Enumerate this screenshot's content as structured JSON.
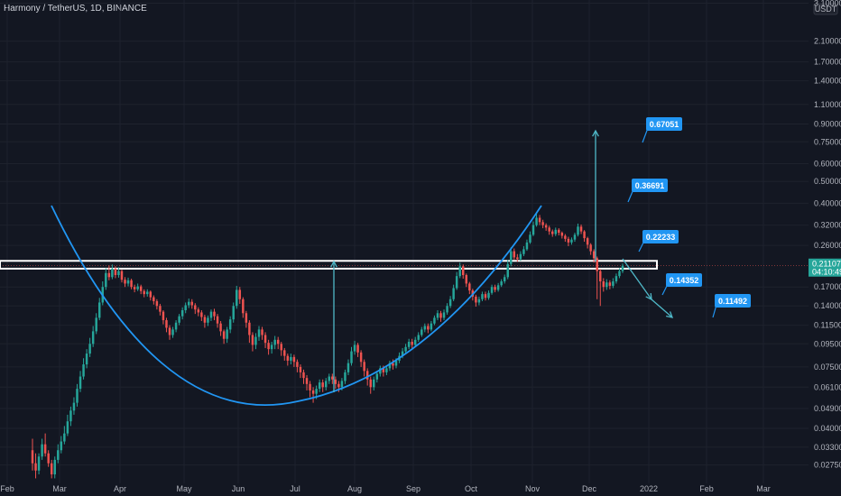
{
  "header": {
    "title": "Harmony / TetherUS, 1D, BINANCE"
  },
  "chart_data": {
    "type": "candlestick",
    "scale": "log",
    "currency": "USDT",
    "ylim": [
      0.0228,
      3.2
    ],
    "price_ticks": [
      "3.10000",
      "2.10000",
      "1.70000",
      "1.40000",
      "1.10000",
      "0.90000",
      "0.75000",
      "0.60000",
      "0.50000",
      "0.40000",
      "0.32000",
      "0.26000",
      "0.17000",
      "0.14000",
      "0.11500",
      "0.09500",
      "0.07500",
      "0.06100",
      "0.04900",
      "0.04000",
      "0.03300",
      "0.02750"
    ],
    "time_labels": [
      "Feb",
      "Mar",
      "Apr",
      "May",
      "Jun",
      "Jul",
      "Aug",
      "Sep",
      "Oct",
      "Nov",
      "Dec",
      "2022",
      "Feb",
      "Mar"
    ],
    "current_price": "0.21107",
    "countdown": "04:10:49",
    "resistance_zone": [
      0.205,
      0.222
    ],
    "targets_up": [
      "0.22233",
      "0.36691",
      "0.67051"
    ],
    "targets_down": [
      "0.14352",
      "0.11492"
    ],
    "candles": [
      [
        0.032,
        0.028,
        0.036,
        0.026
      ],
      [
        0.028,
        0.026,
        0.031,
        0.024
      ],
      [
        0.026,
        0.03,
        0.031,
        0.025
      ],
      [
        0.03,
        0.034,
        0.036,
        0.029
      ],
      [
        0.034,
        0.031,
        0.038,
        0.03
      ],
      [
        0.031,
        0.028,
        0.032,
        0.027
      ],
      [
        0.028,
        0.025,
        0.029,
        0.024
      ],
      [
        0.025,
        0.029,
        0.03,
        0.024
      ],
      [
        0.029,
        0.032,
        0.034,
        0.028
      ],
      [
        0.032,
        0.035,
        0.037,
        0.031
      ],
      [
        0.035,
        0.038,
        0.041,
        0.034
      ],
      [
        0.038,
        0.043,
        0.046,
        0.037
      ],
      [
        0.043,
        0.048,
        0.05,
        0.041
      ],
      [
        0.048,
        0.052,
        0.055,
        0.046
      ],
      [
        0.052,
        0.06,
        0.063,
        0.05
      ],
      [
        0.06,
        0.068,
        0.072,
        0.058
      ],
      [
        0.068,
        0.077,
        0.082,
        0.066
      ],
      [
        0.077,
        0.086,
        0.09,
        0.074
      ],
      [
        0.086,
        0.095,
        0.101,
        0.083
      ],
      [
        0.095,
        0.108,
        0.114,
        0.092
      ],
      [
        0.108,
        0.124,
        0.13,
        0.105
      ],
      [
        0.124,
        0.145,
        0.152,
        0.121
      ],
      [
        0.145,
        0.17,
        0.18,
        0.141
      ],
      [
        0.17,
        0.196,
        0.206,
        0.165
      ],
      [
        0.196,
        0.188,
        0.212,
        0.182
      ],
      [
        0.188,
        0.205,
        0.214,
        0.184
      ],
      [
        0.205,
        0.192,
        0.21,
        0.186
      ],
      [
        0.192,
        0.2,
        0.208,
        0.187
      ],
      [
        0.2,
        0.183,
        0.203,
        0.178
      ],
      [
        0.183,
        0.176,
        0.188,
        0.17
      ],
      [
        0.176,
        0.182,
        0.187,
        0.171
      ],
      [
        0.182,
        0.17,
        0.185,
        0.166
      ],
      [
        0.17,
        0.166,
        0.174,
        0.161
      ],
      [
        0.166,
        0.171,
        0.176,
        0.163
      ],
      [
        0.171,
        0.163,
        0.174,
        0.158
      ],
      [
        0.163,
        0.158,
        0.166,
        0.153
      ],
      [
        0.158,
        0.162,
        0.166,
        0.154
      ],
      [
        0.162,
        0.153,
        0.164,
        0.148
      ],
      [
        0.153,
        0.147,
        0.156,
        0.142
      ],
      [
        0.147,
        0.14,
        0.15,
        0.135
      ],
      [
        0.14,
        0.132,
        0.143,
        0.127
      ],
      [
        0.132,
        0.121,
        0.134,
        0.116
      ],
      [
        0.121,
        0.112,
        0.124,
        0.107
      ],
      [
        0.112,
        0.104,
        0.115,
        0.099
      ],
      [
        0.104,
        0.11,
        0.113,
        0.101
      ],
      [
        0.11,
        0.118,
        0.121,
        0.107
      ],
      [
        0.118,
        0.126,
        0.129,
        0.115
      ],
      [
        0.126,
        0.134,
        0.138,
        0.122
      ],
      [
        0.134,
        0.141,
        0.145,
        0.13
      ],
      [
        0.141,
        0.146,
        0.151,
        0.137
      ],
      [
        0.146,
        0.141,
        0.15,
        0.136
      ],
      [
        0.141,
        0.135,
        0.144,
        0.129
      ],
      [
        0.135,
        0.131,
        0.138,
        0.126
      ],
      [
        0.131,
        0.125,
        0.134,
        0.12
      ],
      [
        0.125,
        0.118,
        0.128,
        0.112
      ],
      [
        0.118,
        0.124,
        0.127,
        0.114
      ],
      [
        0.124,
        0.132,
        0.135,
        0.12
      ],
      [
        0.132,
        0.126,
        0.136,
        0.121
      ],
      [
        0.126,
        0.117,
        0.129,
        0.112
      ],
      [
        0.117,
        0.108,
        0.12,
        0.103
      ],
      [
        0.108,
        0.1,
        0.11,
        0.095
      ],
      [
        0.1,
        0.11,
        0.113,
        0.096
      ],
      [
        0.11,
        0.122,
        0.126,
        0.106
      ],
      [
        0.122,
        0.14,
        0.145,
        0.118
      ],
      [
        0.14,
        0.165,
        0.172,
        0.136
      ],
      [
        0.165,
        0.15,
        0.17,
        0.143
      ],
      [
        0.15,
        0.13,
        0.153,
        0.124
      ],
      [
        0.13,
        0.118,
        0.133,
        0.112
      ],
      [
        0.118,
        0.104,
        0.121,
        0.096
      ],
      [
        0.104,
        0.094,
        0.107,
        0.088
      ],
      [
        0.094,
        0.102,
        0.106,
        0.09
      ],
      [
        0.102,
        0.11,
        0.114,
        0.098
      ],
      [
        0.11,
        0.104,
        0.113,
        0.099
      ],
      [
        0.104,
        0.096,
        0.107,
        0.091
      ],
      [
        0.096,
        0.09,
        0.099,
        0.085
      ],
      [
        0.09,
        0.094,
        0.097,
        0.086
      ],
      [
        0.094,
        0.099,
        0.103,
        0.09
      ],
      [
        0.099,
        0.095,
        0.102,
        0.09
      ],
      [
        0.095,
        0.089,
        0.097,
        0.084
      ],
      [
        0.089,
        0.084,
        0.091,
        0.08
      ],
      [
        0.084,
        0.08,
        0.086,
        0.076
      ],
      [
        0.08,
        0.083,
        0.086,
        0.077
      ],
      [
        0.083,
        0.079,
        0.085,
        0.075
      ],
      [
        0.079,
        0.075,
        0.081,
        0.071
      ],
      [
        0.075,
        0.071,
        0.077,
        0.067
      ],
      [
        0.071,
        0.067,
        0.073,
        0.063
      ],
      [
        0.067,
        0.063,
        0.069,
        0.059
      ],
      [
        0.063,
        0.059,
        0.065,
        0.055
      ],
      [
        0.059,
        0.057,
        0.061,
        0.052
      ],
      [
        0.057,
        0.06,
        0.062,
        0.054
      ],
      [
        0.06,
        0.064,
        0.066,
        0.058
      ],
      [
        0.064,
        0.061,
        0.066,
        0.058
      ],
      [
        0.061,
        0.065,
        0.067,
        0.059
      ],
      [
        0.065,
        0.068,
        0.07,
        0.063
      ],
      [
        0.068,
        0.066,
        0.07,
        0.063
      ],
      [
        0.066,
        0.063,
        0.068,
        0.06
      ],
      [
        0.063,
        0.061,
        0.065,
        0.058
      ],
      [
        0.061,
        0.065,
        0.067,
        0.059
      ],
      [
        0.065,
        0.071,
        0.073,
        0.063
      ],
      [
        0.071,
        0.078,
        0.081,
        0.069
      ],
      [
        0.078,
        0.088,
        0.092,
        0.076
      ],
      [
        0.088,
        0.094,
        0.098,
        0.085
      ],
      [
        0.094,
        0.087,
        0.096,
        0.083
      ],
      [
        0.087,
        0.079,
        0.089,
        0.075
      ],
      [
        0.079,
        0.072,
        0.081,
        0.068
      ],
      [
        0.072,
        0.066,
        0.074,
        0.062
      ],
      [
        0.066,
        0.061,
        0.068,
        0.057
      ],
      [
        0.061,
        0.066,
        0.068,
        0.059
      ],
      [
        0.066,
        0.07,
        0.072,
        0.064
      ],
      [
        0.07,
        0.074,
        0.076,
        0.068
      ],
      [
        0.074,
        0.071,
        0.076,
        0.068
      ],
      [
        0.071,
        0.074,
        0.076,
        0.069
      ],
      [
        0.074,
        0.078,
        0.08,
        0.072
      ],
      [
        0.078,
        0.076,
        0.081,
        0.073
      ],
      [
        0.076,
        0.08,
        0.082,
        0.074
      ],
      [
        0.08,
        0.084,
        0.087,
        0.078
      ],
      [
        0.084,
        0.088,
        0.091,
        0.082
      ],
      [
        0.088,
        0.092,
        0.095,
        0.086
      ],
      [
        0.092,
        0.097,
        0.1,
        0.09
      ],
      [
        0.097,
        0.094,
        0.1,
        0.091
      ],
      [
        0.094,
        0.099,
        0.102,
        0.092
      ],
      [
        0.099,
        0.104,
        0.107,
        0.097
      ],
      [
        0.104,
        0.11,
        0.113,
        0.102
      ],
      [
        0.11,
        0.114,
        0.117,
        0.107
      ],
      [
        0.114,
        0.11,
        0.117,
        0.106
      ],
      [
        0.11,
        0.117,
        0.12,
        0.108
      ],
      [
        0.117,
        0.124,
        0.127,
        0.115
      ],
      [
        0.124,
        0.13,
        0.134,
        0.121
      ],
      [
        0.13,
        0.124,
        0.133,
        0.119
      ],
      [
        0.124,
        0.131,
        0.135,
        0.121
      ],
      [
        0.131,
        0.14,
        0.144,
        0.128
      ],
      [
        0.14,
        0.15,
        0.155,
        0.137
      ],
      [
        0.15,
        0.168,
        0.174,
        0.147
      ],
      [
        0.168,
        0.19,
        0.198,
        0.165
      ],
      [
        0.19,
        0.21,
        0.218,
        0.186
      ],
      [
        0.21,
        0.192,
        0.214,
        0.185
      ],
      [
        0.192,
        0.176,
        0.195,
        0.17
      ],
      [
        0.176,
        0.164,
        0.179,
        0.158
      ],
      [
        0.164,
        0.154,
        0.167,
        0.148
      ],
      [
        0.154,
        0.145,
        0.157,
        0.139
      ],
      [
        0.145,
        0.15,
        0.154,
        0.141
      ],
      [
        0.15,
        0.158,
        0.162,
        0.147
      ],
      [
        0.158,
        0.152,
        0.162,
        0.148
      ],
      [
        0.152,
        0.16,
        0.164,
        0.149
      ],
      [
        0.16,
        0.17,
        0.174,
        0.157
      ],
      [
        0.17,
        0.165,
        0.174,
        0.161
      ],
      [
        0.165,
        0.173,
        0.177,
        0.162
      ],
      [
        0.173,
        0.18,
        0.184,
        0.17
      ],
      [
        0.18,
        0.188,
        0.193,
        0.176
      ],
      [
        0.188,
        0.215,
        0.224,
        0.184
      ],
      [
        0.215,
        0.245,
        0.255,
        0.21
      ],
      [
        0.245,
        0.23,
        0.252,
        0.224
      ],
      [
        0.23,
        0.226,
        0.238,
        0.22
      ],
      [
        0.226,
        0.238,
        0.245,
        0.222
      ],
      [
        0.238,
        0.25,
        0.258,
        0.233
      ],
      [
        0.25,
        0.268,
        0.276,
        0.246
      ],
      [
        0.268,
        0.29,
        0.3,
        0.264
      ],
      [
        0.29,
        0.32,
        0.332,
        0.286
      ],
      [
        0.32,
        0.345,
        0.365,
        0.315
      ],
      [
        0.345,
        0.33,
        0.355,
        0.32
      ],
      [
        0.33,
        0.32,
        0.338,
        0.31
      ],
      [
        0.32,
        0.312,
        0.326,
        0.302
      ],
      [
        0.312,
        0.3,
        0.318,
        0.29
      ],
      [
        0.3,
        0.292,
        0.306,
        0.284
      ],
      [
        0.292,
        0.305,
        0.312,
        0.286
      ],
      [
        0.305,
        0.296,
        0.31,
        0.288
      ],
      [
        0.296,
        0.287,
        0.3,
        0.279
      ],
      [
        0.287,
        0.278,
        0.292,
        0.27
      ],
      [
        0.278,
        0.268,
        0.284,
        0.258
      ],
      [
        0.268,
        0.276,
        0.282,
        0.262
      ],
      [
        0.276,
        0.29,
        0.296,
        0.27
      ],
      [
        0.29,
        0.315,
        0.325,
        0.285
      ],
      [
        0.315,
        0.3,
        0.322,
        0.292
      ],
      [
        0.3,
        0.28,
        0.304,
        0.27
      ],
      [
        0.28,
        0.262,
        0.284,
        0.252
      ],
      [
        0.262,
        0.245,
        0.266,
        0.236
      ],
      [
        0.245,
        0.228,
        0.25,
        0.218
      ],
      [
        0.228,
        0.2,
        0.232,
        0.15
      ],
      [
        0.2,
        0.18,
        0.204,
        0.14
      ],
      [
        0.18,
        0.17,
        0.186,
        0.162
      ],
      [
        0.17,
        0.178,
        0.184,
        0.165
      ],
      [
        0.178,
        0.172,
        0.182,
        0.166
      ],
      [
        0.172,
        0.18,
        0.186,
        0.168
      ],
      [
        0.18,
        0.19,
        0.195,
        0.176
      ],
      [
        0.19,
        0.2,
        0.206,
        0.186
      ],
      [
        0.2,
        0.211,
        0.216,
        0.196
      ]
    ]
  }
}
